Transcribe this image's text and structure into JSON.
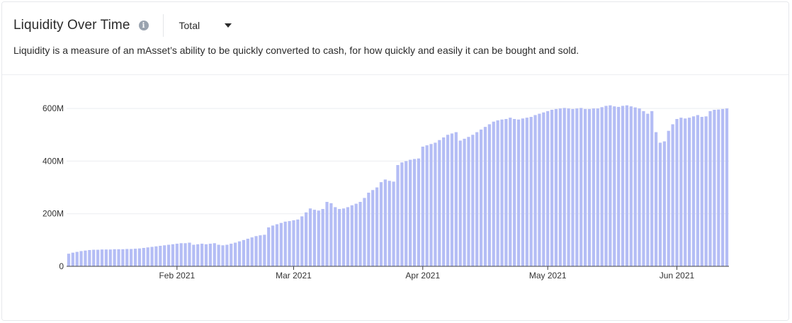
{
  "header": {
    "title": "Liquidity Over Time",
    "info_icon": "info-icon",
    "select_value": "Total",
    "select_icon": "chevron-down-icon",
    "description": "Liquidity is a measure of an mAsset’s ability to be quickly converted to cash, for how quickly and easily it can be bought and sold."
  },
  "chart_data": {
    "type": "bar",
    "title": "",
    "xlabel": "",
    "ylabel": "",
    "x_start": "2021-01-06",
    "ylim": [
      0,
      700000000
    ],
    "y_ticks": [
      0,
      200000000,
      400000000,
      600000000
    ],
    "y_tick_labels": [
      "0",
      "200M",
      "400M",
      "600M"
    ],
    "x_ticks": [
      {
        "date": "2021-02-01",
        "label": "Feb 2021"
      },
      {
        "date": "2021-03-01",
        "label": "Mar 2021"
      },
      {
        "date": "2021-04-01",
        "label": "Apr 2021"
      },
      {
        "date": "2021-05-01",
        "label": "May 2021"
      },
      {
        "date": "2021-06-01",
        "label": "Jun 2021"
      }
    ],
    "grid": true,
    "bar_color": "#b4bdf5",
    "values_m": [
      48,
      52,
      55,
      58,
      60,
      62,
      63,
      63,
      64,
      64,
      64,
      65,
      65,
      65,
      66,
      66,
      67,
      68,
      70,
      72,
      74,
      76,
      78,
      80,
      82,
      84,
      86,
      88,
      88,
      90,
      82,
      84,
      86,
      84,
      86,
      88,
      82,
      80,
      82,
      86,
      90,
      95,
      100,
      105,
      110,
      115,
      118,
      120,
      148,
      155,
      160,
      165,
      170,
      172,
      175,
      178,
      190,
      205,
      220,
      215,
      212,
      218,
      245,
      240,
      225,
      218,
      220,
      225,
      232,
      238,
      245,
      260,
      280,
      290,
      300,
      320,
      330,
      325,
      322,
      385,
      395,
      400,
      405,
      408,
      410,
      455,
      460,
      465,
      470,
      480,
      490,
      500,
      505,
      510,
      478,
      485,
      492,
      500,
      510,
      520,
      530,
      540,
      550,
      555,
      558,
      560,
      565,
      560,
      558,
      562,
      565,
      568,
      575,
      580,
      585,
      590,
      595,
      598,
      600,
      602,
      600,
      598,
      600,
      602,
      598,
      598,
      600,
      600,
      605,
      610,
      612,
      608,
      606,
      610,
      612,
      608,
      604,
      600,
      590,
      580,
      590,
      510,
      470,
      475,
      515,
      540,
      560,
      565,
      562,
      565,
      570,
      575,
      568,
      570,
      590,
      595,
      596,
      598,
      600
    ]
  }
}
